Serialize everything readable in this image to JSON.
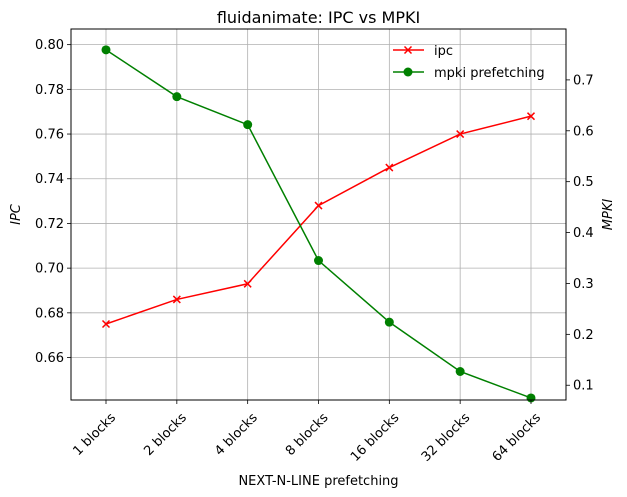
{
  "chart_data": {
    "type": "line",
    "title": "fluidanimate: IPC vs MPKI",
    "xlabel": "NEXT-N-LINE prefetching",
    "ylabel_left": "IPC",
    "ylabel_right": "MPKI",
    "categories": [
      "1 blocks",
      "2 blocks",
      "4 blocks",
      "8 blocks",
      "16 blocks",
      "32 blocks",
      "64 blocks"
    ],
    "y_left": {
      "lim": [
        0.641,
        0.807
      ],
      "ticks": [
        0.66,
        0.68,
        0.7,
        0.72,
        0.74,
        0.76,
        0.78,
        0.8
      ],
      "tick_labels": [
        "0.66",
        "0.68",
        "0.70",
        "0.72",
        "0.74",
        "0.76",
        "0.78",
        "0.80"
      ]
    },
    "y_right": {
      "lim": [
        0.071,
        0.8
      ],
      "ticks": [
        0.1,
        0.2,
        0.3,
        0.4,
        0.5,
        0.6,
        0.7
      ],
      "tick_labels": [
        "0.1",
        "0.2",
        "0.3",
        "0.4",
        "0.5",
        "0.6",
        "0.7"
      ]
    },
    "series": [
      {
        "name": "ipc",
        "axis": "left",
        "color": "#ff0000",
        "marker": "x",
        "values": [
          0.675,
          0.686,
          0.693,
          0.728,
          0.745,
          0.76,
          0.768
        ]
      },
      {
        "name": "mpki prefetching",
        "axis": "right",
        "color": "#008000",
        "marker": "o",
        "values": [
          0.759,
          0.667,
          0.612,
          0.345,
          0.224,
          0.127,
          0.075
        ]
      }
    ],
    "grid": true,
    "legend_position": "top-right"
  }
}
